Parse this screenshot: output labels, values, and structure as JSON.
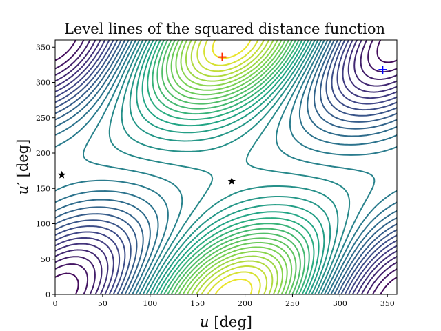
{
  "chart_data": {
    "type": "contour",
    "title": "Level lines of the squared distance function",
    "xlabel_symbol": "u",
    "xlabel_unit": " [deg]",
    "ylabel_symbol": "u′",
    "ylabel_unit": " [deg]",
    "xlim": [
      0,
      360
    ],
    "ylim": [
      0,
      360
    ],
    "xticks": [
      0,
      50,
      100,
      150,
      200,
      250,
      300,
      350
    ],
    "yticks": [
      0,
      50,
      100,
      150,
      200,
      250,
      300,
      350
    ],
    "grid": false,
    "colormap": "viridis",
    "colormap_colors": [
      "#440154",
      "#414487",
      "#2a788e",
      "#22a884",
      "#7ad151",
      "#fde725"
    ],
    "maxima": [
      {
        "u": 176,
        "v": 336,
        "marker": "plus",
        "color": "#ff2a00"
      },
      {
        "u": 200,
        "v": 20,
        "marker": "none",
        "color": ""
      }
    ],
    "minima": [
      {
        "u": 345,
        "v": 318,
        "marker": "plus",
        "color": "#0000ff"
      },
      {
        "u": 15,
        "v": 40,
        "marker": "none",
        "color": ""
      }
    ],
    "saddles": [
      {
        "u": 7,
        "v": 169,
        "marker": "star",
        "color": "#000000"
      },
      {
        "u": 186,
        "v": 160,
        "marker": "star",
        "color": "#000000"
      }
    ]
  }
}
